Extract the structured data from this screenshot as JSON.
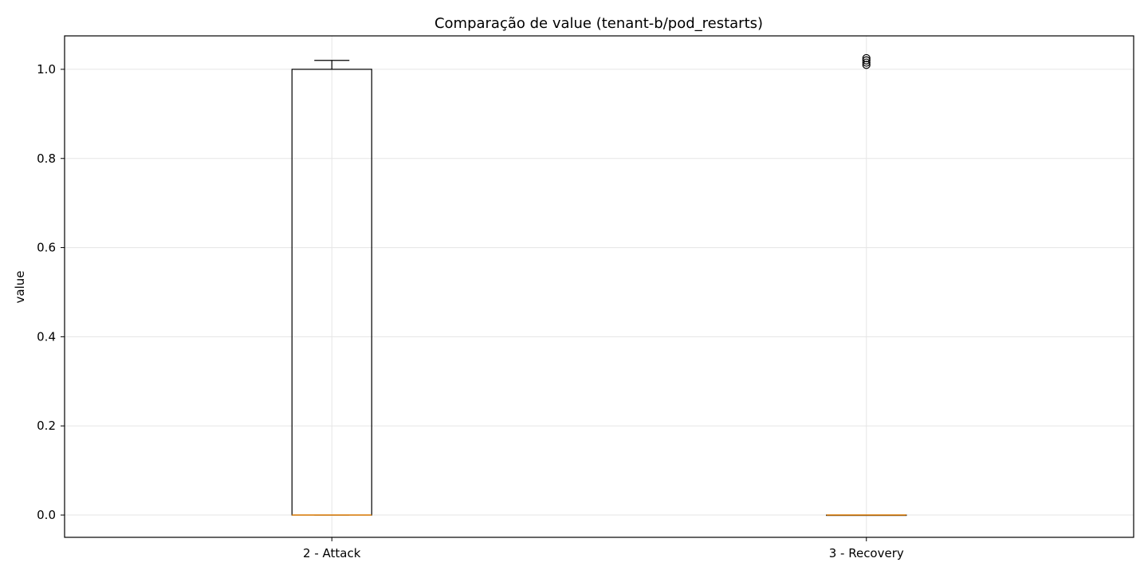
{
  "chart_data": {
    "type": "box",
    "title": "Comparação de value (tenant-b/pod_restarts)",
    "xlabel": "",
    "ylabel": "value",
    "ylim": [
      -0.05,
      1.075
    ],
    "yticks": [
      0.0,
      0.2,
      0.4,
      0.6,
      0.8,
      1.0
    ],
    "ytick_labels": [
      "0.0",
      "0.2",
      "0.4",
      "0.6",
      "0.8",
      "1.0"
    ],
    "categories": [
      "2 - Attack",
      "3 - Recovery"
    ],
    "grid": true,
    "box_color": "#000000",
    "median_color": "#e6850e",
    "grid_color": "#e5e5e5",
    "boxes": [
      {
        "category": "2 - Attack",
        "whisker_low": 0.0,
        "q1": 0.0,
        "median": 0.0,
        "q3": 1.0,
        "whisker_high": 1.02,
        "outliers": []
      },
      {
        "category": "3 - Recovery",
        "whisker_low": 0.0,
        "q1": 0.0,
        "median": 0.0,
        "q3": 0.0,
        "whisker_high": 0.0,
        "outliers": [
          1.01,
          1.015,
          1.02,
          1.025
        ]
      }
    ]
  }
}
